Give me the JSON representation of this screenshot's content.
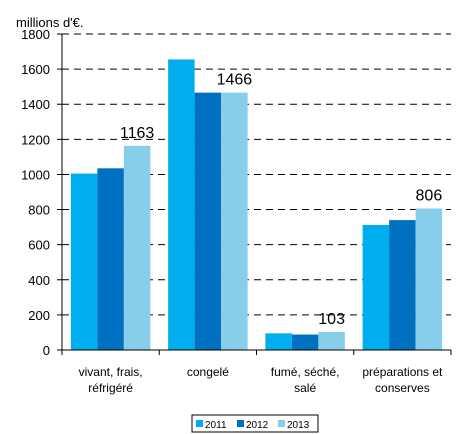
{
  "chart_data": {
    "type": "bar",
    "ylabel": "millions d'€.",
    "ylim": [
      0,
      1800
    ],
    "yticks": [
      0,
      200,
      400,
      600,
      800,
      1000,
      1200,
      1400,
      1600,
      1800
    ],
    "grid": true,
    "legend_position": "bottom-center",
    "categories": [
      [
        "vivant, frais,",
        "réfrigéré"
      ],
      [
        "congelé"
      ],
      [
        "fumé, séché,",
        "salé"
      ],
      [
        "préparations et",
        "conserves"
      ]
    ],
    "series": [
      {
        "name": "2011",
        "color": "#00aeef",
        "values": [
          1005,
          1655,
          95,
          712
        ]
      },
      {
        "name": "2012",
        "color": "#0070c0",
        "values": [
          1035,
          1466,
          88,
          740
        ]
      },
      {
        "name": "2013",
        "color": "#87ceeb",
        "values": [
          1163,
          1466,
          103,
          806
        ]
      }
    ],
    "data_labels": [
      {
        "category": 0,
        "series": 2,
        "text": "1163"
      },
      {
        "category": 1,
        "series": 2,
        "text": "1466"
      },
      {
        "category": 2,
        "series": 2,
        "text": "103"
      },
      {
        "category": 3,
        "series": 2,
        "text": "806"
      }
    ]
  }
}
